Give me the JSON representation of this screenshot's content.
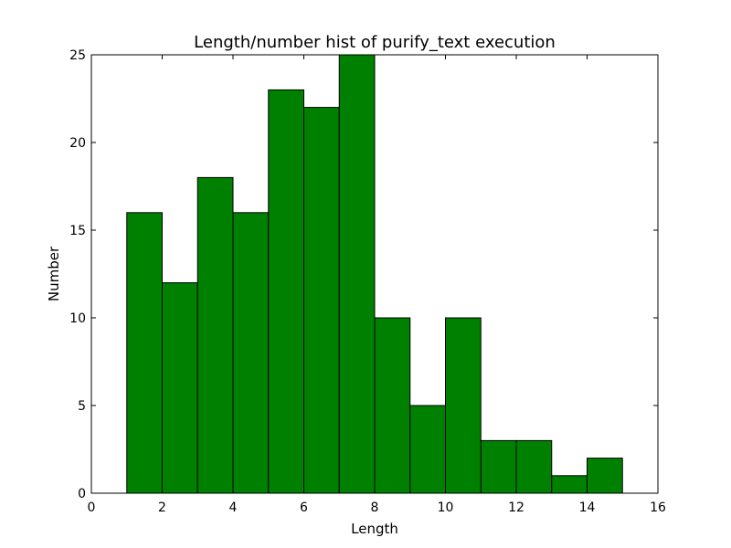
{
  "chart_data": {
    "type": "bar",
    "title": "Length/number hist of purify_text execution",
    "xlabel": "Length",
    "ylabel": "Number",
    "xlim": [
      0,
      16
    ],
    "ylim": [
      0,
      25
    ],
    "xticks": [
      0,
      2,
      4,
      6,
      8,
      10,
      12,
      14,
      16
    ],
    "yticks": [
      0,
      5,
      10,
      15,
      20,
      25
    ],
    "bin_edges": [
      0,
      1,
      2,
      3,
      4,
      5,
      6,
      7,
      8,
      9,
      10,
      11,
      12,
      13,
      14,
      15
    ],
    "values": [
      0,
      16,
      12,
      18,
      16,
      23,
      22,
      25,
      10,
      5,
      10,
      3,
      3,
      1,
      2
    ],
    "bar_color": "#008000",
    "grid": false
  }
}
